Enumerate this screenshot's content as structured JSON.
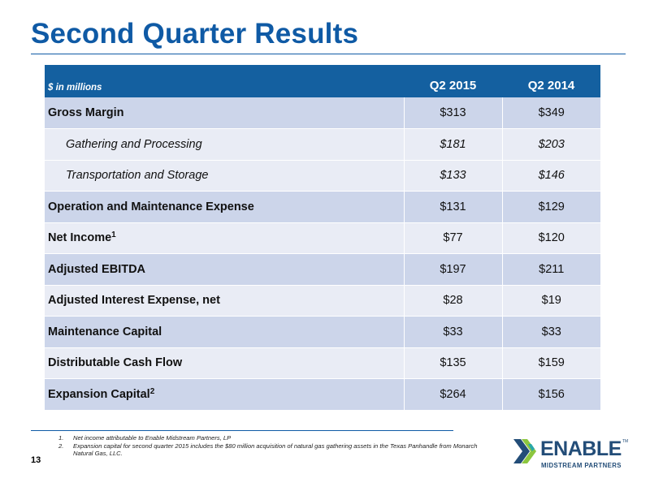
{
  "slide": {
    "title": "Second Quarter Results",
    "page_number": "13"
  },
  "table": {
    "units": "$ in millions",
    "columns": [
      "Q2 2015",
      "Q2 2014"
    ],
    "rows": [
      {
        "label": "Gross Margin",
        "q2_2015": "$313",
        "q2_2014": "$349"
      },
      {
        "label": "Gathering and Processing",
        "q2_2015": "$181",
        "q2_2014": "$203"
      },
      {
        "label": "Transportation and Storage",
        "q2_2015": "$133",
        "q2_2014": "$146"
      },
      {
        "label": "Operation and Maintenance Expense",
        "q2_2015": "$131",
        "q2_2014": "$129"
      },
      {
        "label": "Net Income",
        "sup": "1",
        "q2_2015": "$77",
        "q2_2014": "$120"
      },
      {
        "label": "Adjusted EBITDA",
        "q2_2015": "$197",
        "q2_2014": "$211"
      },
      {
        "label": "Adjusted Interest Expense, net",
        "q2_2015": "$28",
        "q2_2014": "$19"
      },
      {
        "label": "Maintenance Capital",
        "q2_2015": "$33",
        "q2_2014": "$33"
      },
      {
        "label": "Distributable Cash Flow",
        "q2_2015": "$135",
        "q2_2014": "$159"
      },
      {
        "label": "Expansion Capital",
        "sup": "2",
        "q2_2015": "$264",
        "q2_2014": "$156"
      }
    ]
  },
  "footnotes": [
    {
      "num": "1.",
      "text": "Net income attributable to Enable Midstream Partners, LP"
    },
    {
      "num": "2.",
      "text": "Expansion capital for second quarter 2015 includes the $80 million acquisition of natural gas gathering assets in the Texas Panhandle from Monarch Natural Gas, LLC."
    }
  ],
  "logo": {
    "word": "ENABLE",
    "tm": "TM",
    "tagline": "MIDSTREAM PARTNERS",
    "colors": {
      "dark": "#234d78",
      "green": "#8cc63f",
      "teal": "#2aa8a8"
    }
  },
  "colors": {
    "title": "#0f5aa5",
    "header_bg": "#1460a0",
    "row_shade": "#ccd5ea",
    "row_light": "#e9ecf5"
  }
}
